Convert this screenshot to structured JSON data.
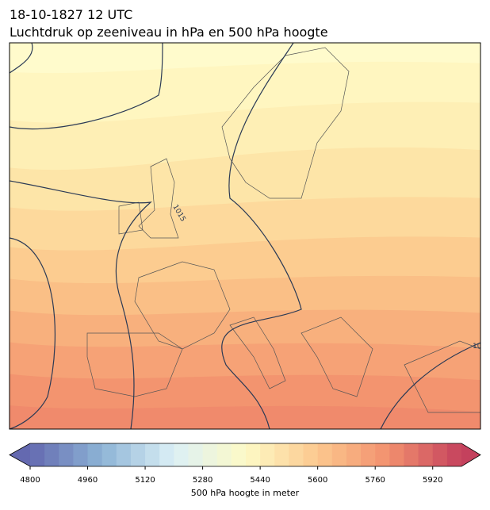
{
  "header": {
    "title": "18-10-1827 12 UTC",
    "subtitle": "Luchtdruk op zeeniveau in hPa en 500 hPa hoogte"
  },
  "map": {
    "contour_labels": [
      "1015",
      "10"
    ]
  },
  "colorbar": {
    "label": "500 hPa hoogte in meter",
    "range": [
      4800,
      6000
    ],
    "step": 40,
    "ticks": [
      4800,
      4960,
      5120,
      5280,
      5440,
      5600,
      5760,
      5920
    ],
    "colors": [
      "#6469b0",
      "#8db4d6",
      "#dcf0f6",
      "#fdfac6",
      "#fcc88e",
      "#f28f6e",
      "#c4415d"
    ]
  }
}
